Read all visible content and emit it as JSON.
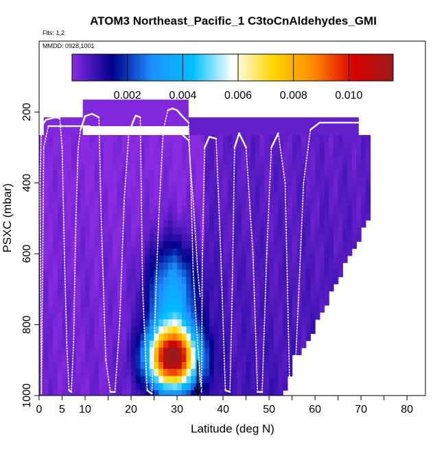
{
  "chart_data": {
    "type": "heatmap",
    "title": "ATOM3 Northeast_Pacific_1 C3toCnAldehydes_GMI",
    "flights_note": "Flts: 1,2",
    "date_note": "MMDD: 0928,1001",
    "xlabel": "Latitude (deg N)",
    "ylabel": "PSXC (mbar)",
    "xlim": [
      0,
      84
    ],
    "ylim": [
      1000,
      0
    ],
    "x_ticks": [
      0,
      10,
      20,
      30,
      40,
      50,
      60,
      70,
      80
    ],
    "x_tick_labels": [
      "0",
      "10",
      "20",
      "30",
      "40",
      "50",
      "60",
      "70",
      "80"
    ],
    "x_extra_tick": 5,
    "x_extra_tick_label": "5",
    "y_ticks": [
      200,
      400,
      600,
      800,
      1000
    ],
    "y_tick_labels": [
      "200",
      "400",
      "600",
      "800",
      "1000"
    ],
    "colorbar": {
      "min": 0.0,
      "max": 0.0116,
      "ticks": [
        0.002,
        0.004,
        0.006,
        0.008,
        0.01
      ],
      "tick_labels": [
        "0.002",
        "0.004",
        "0.006",
        "0.008",
        "0.010"
      ],
      "colors": [
        "#8a2be2",
        "#00008b",
        "#1e90ff",
        "#00bfff",
        "#ffffff",
        "#ffd700",
        "#ff8c00",
        "#dd0000",
        "#9b1b1b"
      ]
    },
    "grid": false,
    "marker_latitude": 34.5,
    "panels": [
      {
        "lat": [
          9.5,
          32.5
        ],
        "p": [
          165,
          240
        ],
        "value": 0.0001
      },
      {
        "lat": [
          1,
          9.5
        ],
        "p": [
          215,
          265
        ],
        "value": 0.0001
      },
      {
        "lat": [
          32.5,
          69.5
        ],
        "p": [
          215,
          265
        ],
        "value": 0.0004
      },
      {
        "lat": [
          0,
          71.5
        ],
        "p": [
          265,
          1000
        ],
        "value": "field"
      }
    ],
    "white_region_note": "no data south-east of the cut line",
    "flight_track_1": [
      [
        0.5,
        990
      ],
      [
        0.2,
        400
      ],
      [
        0.5,
        240
      ],
      [
        1.5,
        222
      ],
      [
        3.5,
        215
      ],
      [
        4.5,
        218
      ],
      [
        5,
        300
      ],
      [
        5.5,
        600
      ],
      [
        6,
        850
      ],
      [
        6.5,
        985
      ],
      [
        7,
        990
      ],
      [
        7.5,
        850
      ],
      [
        8,
        500
      ],
      [
        8.5,
        300
      ],
      [
        9,
        250
      ],
      [
        10,
        212
      ],
      [
        11.5,
        205
      ],
      [
        13,
        215
      ],
      [
        13.5,
        500
      ],
      [
        14.5,
        900
      ],
      [
        15.5,
        990
      ],
      [
        16.5,
        990
      ],
      [
        17.5,
        800
      ],
      [
        18.5,
        450
      ],
      [
        19.5,
        260
      ],
      [
        20.5,
        225
      ],
      [
        21,
        210
      ],
      [
        22,
        215
      ],
      [
        22.5,
        700
      ],
      [
        23.5,
        985
      ],
      [
        24.5,
        995
      ],
      [
        25,
        850
      ],
      [
        26,
        500
      ],
      [
        27,
        250
      ],
      [
        28,
        195
      ],
      [
        29,
        190
      ],
      [
        30,
        195
      ],
      [
        31,
        210
      ],
      [
        32.5,
        230
      ],
      [
        33,
        400
      ],
      [
        33.5,
        650
      ],
      [
        34.5,
        860
      ],
      [
        35.3,
        990
      ],
      [
        35.5,
        600
      ],
      [
        36,
        300
      ],
      [
        37,
        270
      ],
      [
        38.5,
        275
      ],
      [
        39.5,
        600
      ],
      [
        40.5,
        985
      ],
      [
        41.5,
        990
      ],
      [
        42,
        700
      ],
      [
        42.5,
        300
      ],
      [
        43.5,
        260
      ],
      [
        45,
        300
      ],
      [
        46.5,
        600
      ],
      [
        47.5,
        990
      ],
      [
        48.5,
        990
      ],
      [
        49.5,
        600
      ],
      [
        50.5,
        300
      ],
      [
        52,
        260
      ],
      [
        53.5,
        400
      ],
      [
        54.5,
        985
      ],
      [
        55.5,
        980
      ],
      [
        56.5,
        700
      ],
      [
        57.5,
        400
      ],
      [
        59,
        250
      ],
      [
        61,
        230
      ],
      [
        70,
        230
      ]
    ],
    "flight_track_2": [
      [
        0.5,
        995
      ],
      [
        0.8,
        600
      ],
      [
        1,
        300
      ],
      [
        2,
        240
      ],
      [
        6,
        240
      ],
      [
        11,
        240
      ],
      [
        12,
        260
      ],
      [
        15,
        260
      ],
      [
        20,
        260
      ],
      [
        24,
        260
      ],
      [
        31,
        262
      ],
      [
        32.5,
        280
      ],
      [
        33.5,
        450
      ],
      [
        34.5,
        650
      ],
      [
        35,
        720
      ]
    ]
  }
}
